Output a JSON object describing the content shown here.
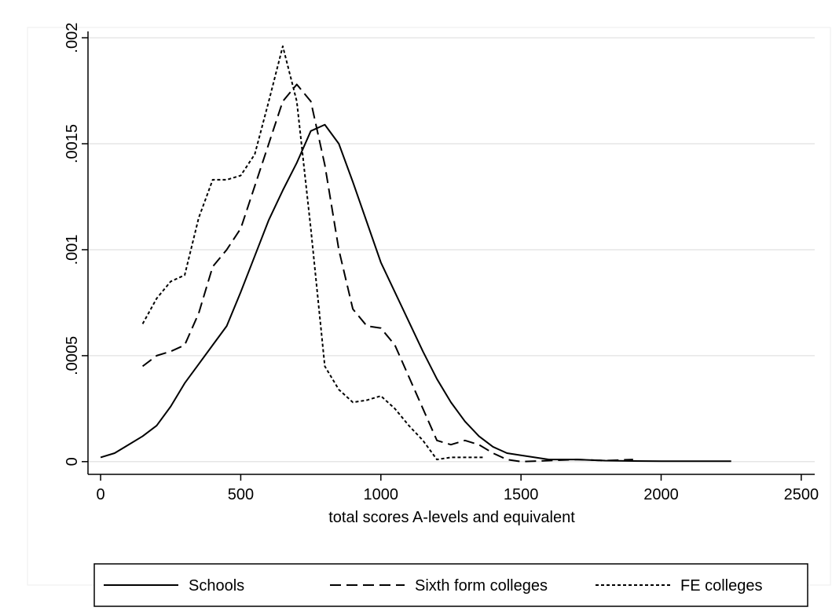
{
  "chart_data": {
    "type": "line",
    "x_label": "total scores A-levels and equivalent",
    "xlim": [
      -45,
      2548
    ],
    "xticks": [
      0,
      500,
      1000,
      1500,
      2000,
      2500
    ],
    "ylim": [
      -6e-05,
      0.00203
    ],
    "yticks": [
      0,
      {
        "value": 0.0005,
        "label": ".0005"
      },
      {
        "value": 0.001,
        "label": ".001"
      },
      {
        "value": 0.0015,
        "label": ".0015"
      },
      {
        "value": 0.002,
        "label": ".002"
      }
    ],
    "grid": true,
    "legend": "bottom",
    "series": [
      {
        "name": "Schools",
        "color": "#000000",
        "line_style": "solid",
        "x": [
          0,
          50,
          100,
          150,
          200,
          250,
          300,
          350,
          400,
          450,
          500,
          550,
          600,
          650,
          700,
          750,
          800,
          850,
          900,
          950,
          1000,
          1050,
          1100,
          1150,
          1200,
          1250,
          1300,
          1350,
          1400,
          1450,
          1500,
          1600,
          1700,
          1800,
          1900,
          2000,
          2250
        ],
        "values": [
          2e-05,
          4e-05,
          8e-05,
          0.00012,
          0.00017,
          0.00026,
          0.00037,
          0.00046,
          0.00055,
          0.00064,
          0.0008,
          0.00097,
          0.00114,
          0.00128,
          0.00141,
          0.00156,
          0.00159,
          0.0015,
          0.00132,
          0.00113,
          0.00094,
          0.0008,
          0.00066,
          0.00052,
          0.00039,
          0.00028,
          0.00019,
          0.00012,
          7e-05,
          4e-05,
          3e-05,
          1e-05,
          1e-05,
          5e-06,
          3e-06,
          2e-06,
          2e-06
        ]
      },
      {
        "name": "Sixth form colleges",
        "color": "#000000",
        "line_style": "dashed",
        "x": [
          150,
          200,
          250,
          300,
          350,
          400,
          450,
          500,
          550,
          600,
          650,
          700,
          750,
          800,
          850,
          900,
          950,
          1000,
          1050,
          1100,
          1150,
          1200,
          1250,
          1300,
          1350,
          1400,
          1450,
          1500,
          1600,
          1700,
          1800,
          1900
        ],
        "values": [
          0.00045,
          0.0005,
          0.00052,
          0.00055,
          0.0007,
          0.00092,
          0.001,
          0.0011,
          0.0013,
          0.0015,
          0.0017,
          0.00178,
          0.0017,
          0.0014,
          0.001,
          0.00072,
          0.00064,
          0.00063,
          0.00055,
          0.0004,
          0.00025,
          0.0001,
          8e-05,
          0.0001,
          8e-05,
          4e-05,
          1e-05,
          0,
          5e-06,
          1e-05,
          5e-06,
          1e-05
        ]
      },
      {
        "name": "FE colleges",
        "color": "#000000",
        "line_style": "dotted",
        "x": [
          150,
          200,
          250,
          300,
          350,
          400,
          450,
          500,
          550,
          600,
          650,
          700,
          750,
          800,
          850,
          900,
          950,
          1000,
          1050,
          1100,
          1150,
          1200,
          1250,
          1300,
          1370
        ],
        "values": [
          0.00065,
          0.00077,
          0.00085,
          0.00088,
          0.00115,
          0.00133,
          0.00133,
          0.00135,
          0.00145,
          0.0017,
          0.00196,
          0.0017,
          0.0011,
          0.00045,
          0.00034,
          0.00028,
          0.00029,
          0.00031,
          0.00025,
          0.00017,
          0.0001,
          1e-05,
          2e-05,
          2e-05,
          2e-05
        ]
      }
    ]
  }
}
